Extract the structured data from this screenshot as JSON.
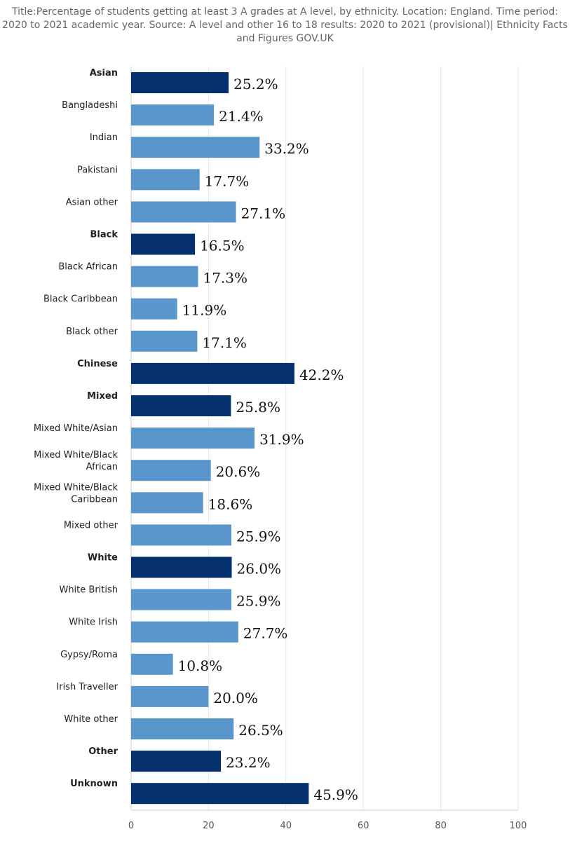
{
  "chart_data": {
    "type": "bar",
    "orientation": "horizontal",
    "title": "Title:Percentage of students getting at least 3 A grades at A level, by ethnicity. Location: England. Time period: 2020 to 2021 academic year. Source: A level and other 16 to 18 results: 2020 to 2021 (provisional)| Ethnicity Facts and Figures GOV.UK",
    "categories": [
      {
        "label": [
          "Asian"
        ],
        "value": 25.2,
        "label_text": "25.2%",
        "group": true
      },
      {
        "label": [
          "Bangladeshi"
        ],
        "value": 21.4,
        "label_text": "21.4%",
        "group": false
      },
      {
        "label": [
          "Indian"
        ],
        "value": 33.2,
        "label_text": "33.2%",
        "group": false
      },
      {
        "label": [
          "Pakistani"
        ],
        "value": 17.7,
        "label_text": "17.7%",
        "group": false
      },
      {
        "label": [
          "Asian other"
        ],
        "value": 27.1,
        "label_text": "27.1%",
        "group": false
      },
      {
        "label": [
          "Black"
        ],
        "value": 16.5,
        "label_text": "16.5%",
        "group": true
      },
      {
        "label": [
          "Black African"
        ],
        "value": 17.3,
        "label_text": "17.3%",
        "group": false
      },
      {
        "label": [
          "Black Caribbean"
        ],
        "value": 11.9,
        "label_text": "11.9%",
        "group": false
      },
      {
        "label": [
          "Black other"
        ],
        "value": 17.1,
        "label_text": "17.1%",
        "group": false
      },
      {
        "label": [
          "Chinese"
        ],
        "value": 42.2,
        "label_text": "42.2%",
        "group": true
      },
      {
        "label": [
          "Mixed"
        ],
        "value": 25.8,
        "label_text": "25.8%",
        "group": true
      },
      {
        "label": [
          "Mixed White/Asian"
        ],
        "value": 31.9,
        "label_text": "31.9%",
        "group": false
      },
      {
        "label": [
          "Mixed White/Black",
          "African"
        ],
        "value": 20.6,
        "label_text": "20.6%",
        "group": false
      },
      {
        "label": [
          "Mixed White/Black",
          "Caribbean"
        ],
        "value": 18.6,
        "label_text": "18.6%",
        "group": false
      },
      {
        "label": [
          "Mixed other"
        ],
        "value": 25.9,
        "label_text": "25.9%",
        "group": false
      },
      {
        "label": [
          "White"
        ],
        "value": 26.0,
        "label_text": "26.0%",
        "group": true
      },
      {
        "label": [
          "White British"
        ],
        "value": 25.9,
        "label_text": "25.9%",
        "group": false
      },
      {
        "label": [
          "White Irish"
        ],
        "value": 27.7,
        "label_text": "27.7%",
        "group": false
      },
      {
        "label": [
          "Gypsy/Roma"
        ],
        "value": 10.8,
        "label_text": "10.8%",
        "group": false
      },
      {
        "label": [
          "Irish Traveller"
        ],
        "value": 20.0,
        "label_text": "20.0%",
        "group": false
      },
      {
        "label": [
          "White other"
        ],
        "value": 26.5,
        "label_text": "26.5%",
        "group": false
      },
      {
        "label": [
          "Other"
        ],
        "value": 23.2,
        "label_text": "23.2%",
        "group": true
      },
      {
        "label": [
          "Unknown"
        ],
        "value": 45.9,
        "label_text": "45.9%",
        "group": true
      }
    ],
    "xlim": [
      0,
      100
    ],
    "xticks": [
      0,
      20,
      40,
      60,
      80,
      100
    ],
    "xtick_labels": [
      "0",
      "20",
      "40",
      "60",
      "80",
      "100"
    ],
    "grid": true,
    "colors": {
      "group": "#05306e",
      "subgroup": "#5996cb",
      "grid": "#e6e6e6",
      "axis": "#cccccc"
    }
  }
}
